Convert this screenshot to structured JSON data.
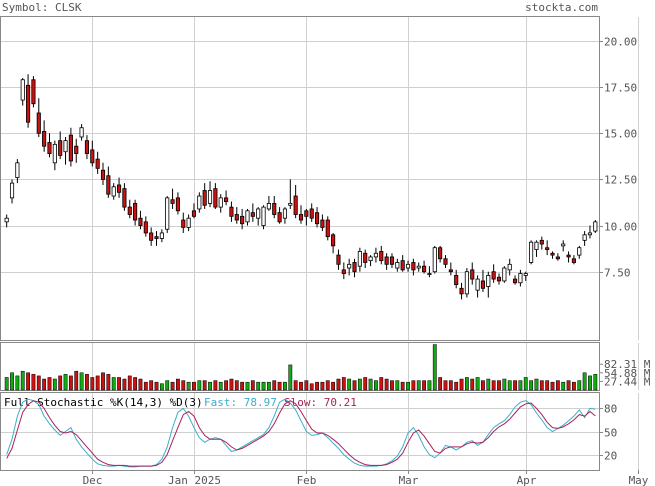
{
  "header": {
    "symbol_label": "Symbol: CLSK",
    "site": "stockta.com"
  },
  "colors": {
    "up_candle": "#ffffff",
    "down_candle": "#cc1111",
    "volume_up": "#11aa11",
    "volume_down": "#cc1111",
    "fast_line": "#3aaecc",
    "slow_line": "#aa2255",
    "grid": "#d0d0d0",
    "label_gray": "#555555"
  },
  "chart_data": [
    {
      "type": "candlestick",
      "name": "price",
      "y_ticks": [
        7.5,
        10.0,
        12.5,
        15.0,
        17.5,
        20.0
      ],
      "y_tick_labels": [
        "7.50",
        "10.00",
        "12.50",
        "15.00",
        "17.50",
        "20.00"
      ],
      "ylim": [
        3.8,
        21.3
      ],
      "x_labels": [
        "Dec",
        "Jan 2025",
        "Feb",
        "Mar",
        "Apr",
        "May"
      ],
      "x_label_index": [
        16,
        35,
        56,
        75,
        97,
        118
      ],
      "grid": true,
      "ohlc": [
        [
          10.2,
          10.6,
          9.9,
          10.4
        ],
        [
          11.5,
          12.5,
          11.2,
          12.3
        ],
        [
          12.6,
          13.6,
          12.3,
          13.4
        ],
        [
          16.8,
          18.0,
          16.5,
          17.9
        ],
        [
          17.6,
          18.2,
          15.3,
          15.6
        ],
        [
          17.9,
          18.1,
          16.4,
          16.6
        ],
        [
          16.1,
          16.9,
          14.8,
          15.0
        ],
        [
          15.1,
          15.7,
          14.0,
          14.3
        ],
        [
          14.5,
          15.0,
          13.7,
          13.9
        ],
        [
          13.4,
          14.6,
          13.0,
          14.4
        ],
        [
          14.6,
          15.1,
          13.6,
          13.8
        ],
        [
          14.0,
          14.8,
          13.3,
          14.6
        ],
        [
          14.9,
          15.3,
          13.2,
          13.5
        ],
        [
          14.3,
          14.7,
          13.4,
          13.9
        ],
        [
          14.8,
          15.5,
          14.6,
          15.3
        ],
        [
          14.6,
          14.9,
          13.6,
          13.9
        ],
        [
          14.1,
          14.6,
          13.2,
          13.4
        ],
        [
          13.6,
          14.0,
          12.8,
          13.1
        ],
        [
          13.0,
          13.4,
          12.2,
          12.5
        ],
        [
          12.7,
          13.2,
          11.5,
          11.7
        ],
        [
          11.6,
          12.3,
          11.4,
          12.1
        ],
        [
          12.2,
          12.6,
          11.5,
          11.8
        ],
        [
          12.0,
          12.3,
          10.8,
          11.0
        ],
        [
          11.0,
          11.4,
          10.4,
          10.6
        ],
        [
          11.2,
          11.4,
          10.0,
          10.3
        ],
        [
          10.4,
          10.8,
          9.8,
          10.0
        ],
        [
          10.2,
          10.5,
          9.4,
          9.6
        ],
        [
          9.6,
          9.9,
          8.9,
          9.2
        ],
        [
          9.4,
          9.7,
          8.9,
          9.3
        ],
        [
          9.3,
          9.8,
          9.1,
          9.6
        ],
        [
          9.8,
          11.6,
          9.6,
          11.5
        ],
        [
          11.4,
          12.0,
          10.9,
          11.2
        ],
        [
          11.5,
          11.8,
          10.6,
          10.8
        ],
        [
          10.3,
          10.7,
          9.6,
          9.9
        ],
        [
          9.9,
          10.6,
          9.7,
          10.4
        ],
        [
          10.8,
          11.2,
          10.4,
          10.5
        ],
        [
          10.9,
          11.8,
          10.7,
          11.6
        ],
        [
          11.9,
          12.3,
          10.9,
          11.1
        ],
        [
          11.2,
          12.4,
          11.0,
          11.9
        ],
        [
          12.0,
          12.3,
          10.9,
          11.0
        ],
        [
          11.0,
          11.7,
          10.7,
          11.5
        ],
        [
          11.5,
          11.9,
          11.1,
          11.3
        ],
        [
          11.0,
          11.3,
          10.2,
          10.5
        ],
        [
          10.6,
          11.0,
          10.1,
          10.3
        ],
        [
          10.5,
          10.9,
          9.8,
          10.1
        ],
        [
          10.2,
          10.9,
          10.0,
          10.8
        ],
        [
          10.7,
          11.2,
          10.2,
          10.5
        ],
        [
          10.4,
          11.0,
          10.0,
          10.9
        ],
        [
          10.0,
          11.1,
          9.8,
          11.0
        ],
        [
          10.9,
          11.6,
          10.8,
          11.2
        ],
        [
          11.2,
          11.6,
          10.4,
          10.6
        ],
        [
          10.7,
          11.0,
          10.1,
          10.2
        ],
        [
          10.4,
          11.0,
          10.1,
          10.9
        ],
        [
          11.1,
          12.5,
          10.9,
          11.2
        ],
        [
          11.6,
          12.2,
          10.4,
          10.6
        ],
        [
          10.6,
          11.1,
          10.1,
          10.3
        ],
        [
          10.8,
          10.9,
          10.0,
          10.5
        ],
        [
          10.9,
          11.2,
          10.2,
          10.4
        ],
        [
          10.7,
          11.0,
          9.9,
          10.1
        ],
        [
          10.3,
          10.6,
          9.7,
          9.9
        ],
        [
          10.3,
          10.5,
          9.2,
          9.4
        ],
        [
          9.5,
          9.6,
          8.5,
          8.9
        ],
        [
          8.4,
          8.7,
          7.6,
          7.9
        ],
        [
          7.6,
          8.0,
          7.1,
          7.4
        ],
        [
          7.7,
          8.2,
          7.3,
          7.9
        ],
        [
          8.0,
          8.2,
          7.2,
          7.5
        ],
        [
          7.8,
          8.8,
          7.5,
          8.6
        ],
        [
          8.5,
          8.7,
          7.7,
          8.0
        ],
        [
          8.1,
          8.4,
          7.8,
          8.3
        ],
        [
          8.3,
          8.8,
          8.0,
          8.5
        ],
        [
          8.6,
          8.9,
          7.9,
          8.1
        ],
        [
          8.3,
          8.5,
          7.6,
          7.9
        ],
        [
          8.3,
          8.5,
          7.7,
          7.9
        ],
        [
          7.7,
          8.2,
          7.5,
          8.0
        ],
        [
          8.1,
          8.4,
          7.5,
          7.6
        ],
        [
          7.7,
          8.1,
          7.5,
          7.9
        ],
        [
          8.0,
          8.2,
          7.3,
          7.6
        ],
        [
          7.7,
          8.0,
          7.5,
          7.8
        ],
        [
          7.8,
          8.1,
          7.4,
          7.5
        ],
        [
          7.4,
          7.8,
          7.2,
          7.4
        ],
        [
          7.5,
          8.9,
          7.4,
          8.8
        ],
        [
          8.8,
          8.9,
          8.0,
          8.2
        ],
        [
          8.2,
          8.4,
          7.7,
          7.9
        ],
        [
          7.6,
          8.0,
          7.3,
          7.5
        ],
        [
          7.3,
          7.6,
          6.6,
          6.8
        ],
        [
          6.6,
          6.9,
          6.0,
          6.3
        ],
        [
          6.3,
          7.7,
          6.1,
          7.5
        ],
        [
          7.6,
          8.0,
          6.8,
          7.1
        ],
        [
          6.5,
          7.3,
          6.1,
          7.1
        ],
        [
          7.0,
          7.6,
          6.4,
          6.6
        ],
        [
          6.7,
          7.5,
          6.1,
          7.3
        ],
        [
          7.5,
          7.9,
          6.9,
          7.1
        ],
        [
          7.2,
          7.4,
          6.8,
          7.0
        ],
        [
          7.0,
          7.8,
          6.9,
          7.7
        ],
        [
          7.6,
          8.2,
          7.3,
          7.9
        ],
        [
          7.1,
          7.3,
          6.8,
          6.9
        ],
        [
          6.9,
          7.6,
          6.7,
          7.4
        ],
        [
          7.3,
          7.5,
          7.0,
          7.4
        ],
        [
          8.0,
          9.2,
          7.9,
          9.1
        ],
        [
          8.7,
          9.2,
          8.3,
          9.1
        ],
        [
          9.2,
          9.4,
          8.7,
          9.0
        ],
        [
          8.8,
          9.2,
          8.4,
          8.7
        ],
        [
          8.5,
          8.6,
          8.2,
          8.4
        ],
        [
          8.3,
          8.5,
          8.1,
          8.2
        ],
        [
          8.9,
          9.2,
          8.6,
          9.0
        ],
        [
          8.4,
          8.6,
          8.0,
          8.3
        ],
        [
          8.2,
          8.4,
          7.9,
          8.0
        ],
        [
          8.4,
          8.9,
          8.2,
          8.8
        ],
        [
          9.2,
          9.7,
          8.9,
          9.5
        ],
        [
          9.5,
          10.0,
          9.3,
          9.6
        ],
        [
          9.7,
          10.3,
          9.6,
          10.2
        ]
      ]
    },
    {
      "type": "bar",
      "name": "volume",
      "y_tick_labels": [
        "82.31 M",
        "54.88 M",
        "27.44 M"
      ],
      "y_ticks": [
        82.31,
        54.88,
        27.44
      ],
      "ylim": [
        0,
        150
      ],
      "values": [
        40,
        55,
        45,
        60,
        55,
        50,
        45,
        35,
        40,
        35,
        45,
        50,
        45,
        60,
        55,
        50,
        40,
        45,
        55,
        50,
        40,
        40,
        35,
        45,
        40,
        35,
        25,
        30,
        25,
        20,
        30,
        25,
        35,
        30,
        25,
        25,
        30,
        30,
        25,
        30,
        25,
        30,
        35,
        30,
        25,
        25,
        30,
        25,
        25,
        25,
        30,
        25,
        25,
        80,
        30,
        25,
        30,
        20,
        25,
        25,
        30,
        25,
        35,
        40,
        35,
        30,
        35,
        40,
        35,
        30,
        40,
        35,
        30,
        30,
        25,
        25,
        30,
        30,
        30,
        30,
        145,
        40,
        30,
        30,
        25,
        35,
        40,
        35,
        40,
        30,
        35,
        30,
        30,
        35,
        30,
        30,
        30,
        40,
        30,
        35,
        30,
        30,
        25,
        30,
        25,
        30,
        25,
        30,
        55,
        45,
        50
      ]
    },
    {
      "type": "line",
      "name": "stochastic",
      "title": "Full Stochastic %K(14,3) %D(3)",
      "legend": [
        {
          "label": "Fast: 78.97",
          "color": "#3aaecc"
        },
        {
          "label": "Slow: 70.21",
          "color": "#aa2255"
        }
      ],
      "y_ticks": [
        80,
        50,
        20
      ],
      "y_tick_labels": [
        "80",
        "50",
        "20"
      ],
      "ylim": [
        0,
        100
      ],
      "fast": [
        20,
        40,
        70,
        88,
        92,
        90,
        85,
        70,
        60,
        52,
        45,
        50,
        55,
        40,
        30,
        22,
        14,
        8,
        6,
        5,
        5,
        6,
        5,
        4,
        4,
        5,
        5,
        5,
        7,
        14,
        30,
        55,
        75,
        80,
        70,
        55,
        42,
        36,
        40,
        42,
        40,
        32,
        24,
        26,
        30,
        34,
        38,
        42,
        46,
        55,
        70,
        88,
        92,
        87,
        78,
        64,
        50,
        45,
        46,
        48,
        42,
        35,
        28,
        20,
        14,
        9,
        6,
        5,
        5,
        5,
        6,
        8,
        12,
        18,
        30,
        48,
        55,
        45,
        30,
        20,
        16,
        22,
        32,
        30,
        26,
        30,
        36,
        38,
        32,
        36,
        46,
        55,
        60,
        64,
        72,
        82,
        88,
        90,
        85,
        74,
        65,
        55,
        50,
        54,
        58,
        64,
        70,
        78,
        68,
        80,
        79
      ],
      "slow": [
        15,
        28,
        52,
        75,
        85,
        90,
        88,
        80,
        68,
        58,
        50,
        48,
        50,
        46,
        38,
        30,
        22,
        14,
        10,
        7,
        6,
        6,
        6,
        5,
        5,
        5,
        5,
        5,
        6,
        10,
        20,
        38,
        55,
        72,
        76,
        70,
        55,
        45,
        40,
        40,
        40,
        36,
        30,
        26,
        28,
        32,
        36,
        40,
        44,
        50,
        60,
        74,
        86,
        90,
        86,
        76,
        64,
        53,
        48,
        48,
        45,
        40,
        34,
        27,
        20,
        14,
        10,
        7,
        6,
        6,
        6,
        7,
        10,
        14,
        22,
        36,
        48,
        52,
        44,
        34,
        24,
        22,
        28,
        30,
        30,
        30,
        34,
        36,
        35,
        36,
        42,
        50,
        56,
        60,
        66,
        74,
        82,
        86,
        87,
        80,
        72,
        62,
        55,
        54,
        56,
        60,
        65,
        72,
        70,
        76,
        70.2
      ]
    }
  ]
}
